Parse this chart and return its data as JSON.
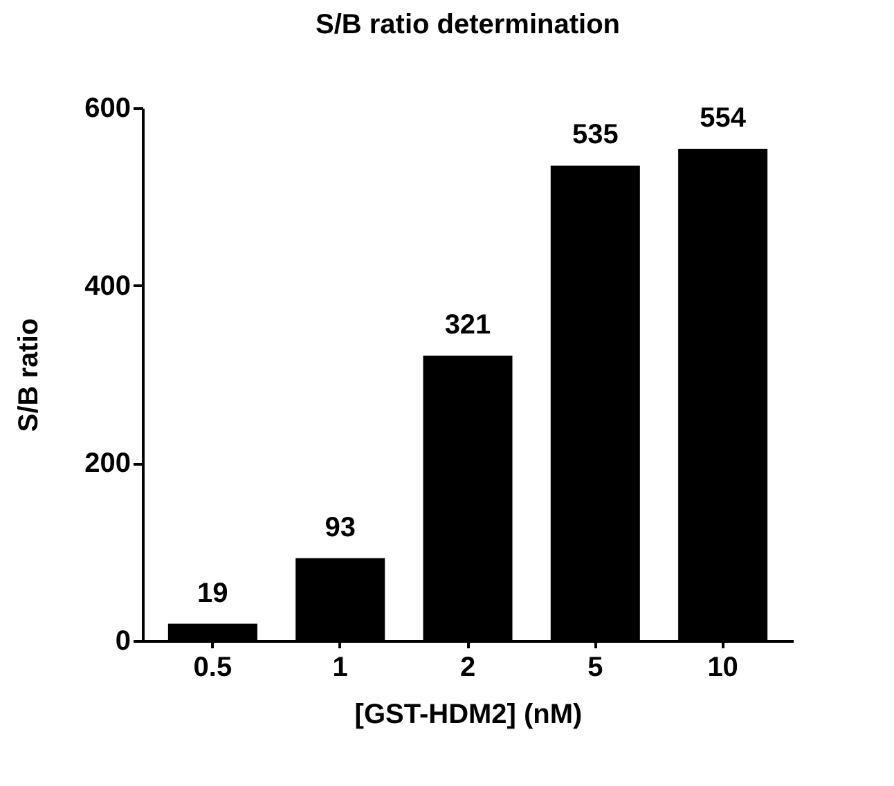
{
  "chart_data": {
    "type": "bar",
    "title": "S/B ratio determination",
    "xlabel": "[GST-HDM2] (nM)",
    "ylabel": "S/B ratio",
    "categories": [
      "0.5",
      "1",
      "2",
      "5",
      "10"
    ],
    "values": [
      19,
      93,
      321,
      535,
      554
    ],
    "color": "#000000",
    "ylim": [
      0,
      600
    ],
    "yticks": [
      0,
      200,
      400,
      600
    ],
    "grid": false,
    "data_labels": true
  }
}
